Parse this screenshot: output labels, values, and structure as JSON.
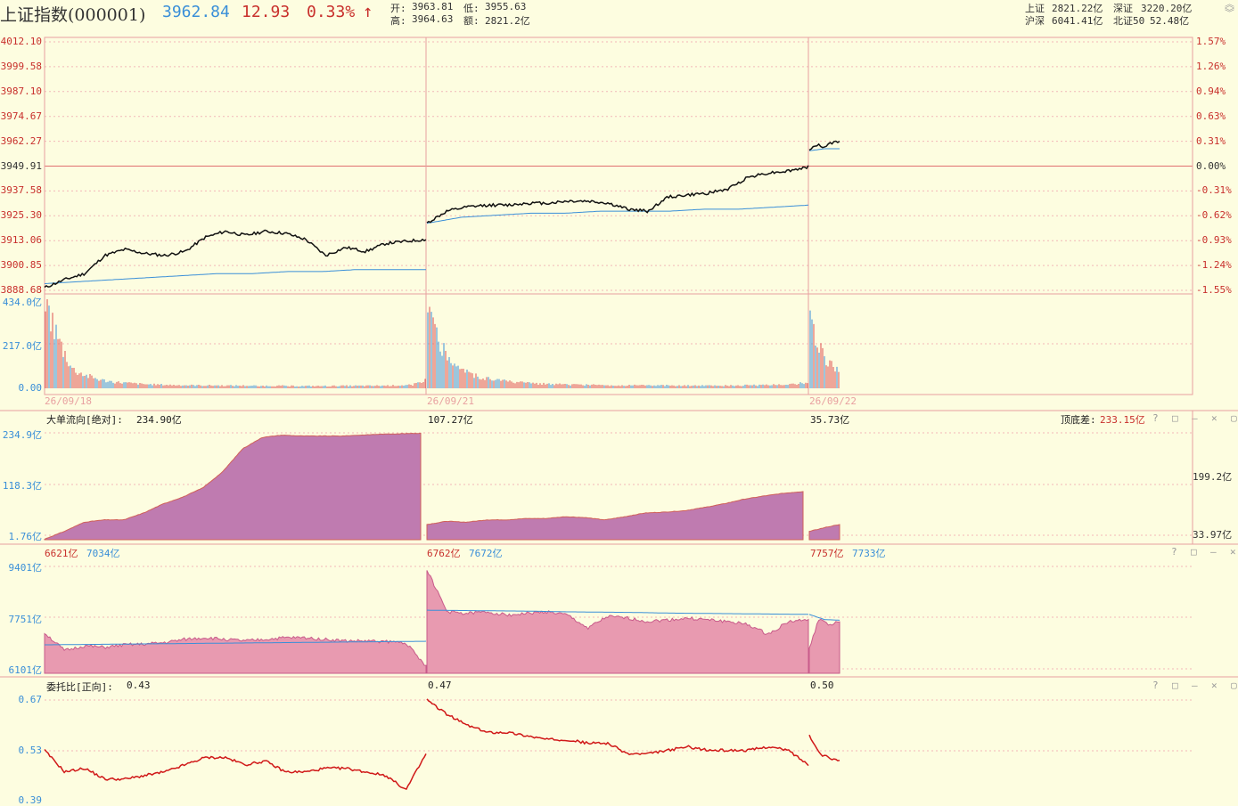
{
  "header": {
    "title": "上证指数(000001)",
    "price": "3962.84",
    "change": "12.93",
    "change_pct": "0.33%",
    "arrow": "↑",
    "open_label": "开:",
    "open": "3963.81",
    "low_label": "低:",
    "low": "3955.63",
    "high_label": "高:",
    "high": "3964.63",
    "amount_label": "额:",
    "amount": "2821.2亿",
    "sh_label": "上证",
    "sh": "2821.22亿",
    "sz_label": "深证",
    "sz": "3220.20亿",
    "hs_label": "沪深",
    "hs": "6041.41亿",
    "bz_label": "北证50",
    "bz": "52.48亿"
  },
  "colors": {
    "background": "#fdfde0",
    "up": "#c8302c",
    "blue": "#3a8fd8",
    "price_line": "#111111",
    "avg_line": "#3a8fd8",
    "grid": "#f2b8b8",
    "flow_fill": "#bf7bb0",
    "amount_fill": "#e89ab0",
    "ratio_line": "#d01818"
  },
  "price_panel": {
    "left_ticks": [
      "4012.10",
      "3999.58",
      "3987.10",
      "3974.67",
      "3962.27",
      "3949.91",
      "3937.58",
      "3925.30",
      "3913.06",
      "3900.85",
      "3888.68"
    ],
    "right_ticks": [
      "1.57%",
      "1.26%",
      "0.94%",
      "0.63%",
      "0.31%",
      "0.00%",
      "-0.31%",
      "-0.62%",
      "-0.93%",
      "-1.24%",
      "-1.55%"
    ],
    "dates": [
      "26/09/18",
      "26/09/21",
      "26/09/22"
    ]
  },
  "volume_panel": {
    "ticks": [
      "434.0亿",
      "217.0亿",
      "0.00"
    ]
  },
  "flow_panel": {
    "label": "大单流向[绝对]:",
    "values": [
      "234.90亿",
      "107.27亿",
      "35.73亿"
    ],
    "diff_label": "顶底差:",
    "diff_value": "233.15亿",
    "ticks": [
      "234.9亿",
      "118.3亿",
      "1.76亿"
    ],
    "right_ticks": [
      "199.2亿",
      "33.97亿"
    ]
  },
  "amount_panel": {
    "pairs": [
      [
        "6621亿",
        "7034亿"
      ],
      [
        "6762亿",
        "7672亿"
      ],
      [
        "7757亿",
        "7733亿"
      ]
    ],
    "ticks": [
      "9401亿",
      "7751亿",
      "6101亿"
    ]
  },
  "ratio_panel": {
    "label": "委托比[正向]:",
    "values": [
      "0.43",
      "0.47",
      "0.50"
    ],
    "ticks": [
      "0.67",
      "0.53",
      "0.39"
    ]
  },
  "controls": {
    "help": "?",
    "restore": "□",
    "minimize": "—",
    "close": "✕",
    "max": "▢"
  },
  "chart_data": [
    {
      "type": "line",
      "title": "",
      "series": [
        {
          "name": "",
          "segments": [
            {
              "date": "26/09/18",
              "values": [
                3890,
                3894,
                3897,
                3906,
                3909,
                3907,
                3906,
                3908,
                3915,
                3918,
                3916,
                3918,
                3917,
                3914,
                3906,
                3910,
                3908,
                3912,
                3913,
                3914
              ]
            },
            {
              "date": "26/09/21",
              "values": [
                3922,
                3928,
                3930,
                3931,
                3931,
                3932,
                3932,
                3933,
                3933,
                3932,
                3929,
                3928,
                3935,
                3936,
                3937,
                3939,
                3945,
                3947,
                3948,
                3950
              ]
            },
            {
              "date": "26/09/22",
              "values": [
                3958,
                3961,
                3960,
                3962,
                3963
              ]
            }
          ]
        },
        {
          "name": "",
          "segments": [
            {
              "date": "26/09/18",
              "values": [
                3892,
                3893,
                3894,
                3895,
                3896,
                3897,
                3897,
                3898,
                3898,
                3899,
                3899,
                3899
              ]
            },
            {
              "date": "26/09/21",
              "values": [
                3922,
                3925,
                3926,
                3927,
                3927,
                3928,
                3928,
                3928,
                3929,
                3929,
                3930,
                3931
              ]
            },
            {
              "date": "26/09/22",
              "values": [
                3958,
                3959,
                3959
              ]
            }
          ]
        }
      ],
      "ylim": [
        3888.68,
        4012.1
      ]
    },
    {
      "type": "area",
      "title": "",
      "series": [
        {
          "name": "",
          "segments": [
            {
              "date": "26/09/18",
              "values": [
                3,
                20,
                40,
                45,
                45,
                60,
                80,
                95,
                115,
                150,
                200,
                225,
                230,
                228,
                228,
                228,
                230,
                232,
                233,
                234
              ]
            },
            {
              "date": "26/09/21",
              "values": [
                35,
                42,
                40,
                45,
                45,
                48,
                48,
                52,
                50,
                45,
                52,
                60,
                62,
                65,
                72,
                80,
                90,
                97,
                103,
                107
              ]
            },
            {
              "date": "26/09/22",
              "values": [
                20,
                28,
                35
              ]
            }
          ]
        }
      ],
      "ylim": [
        1.76,
        234.9
      ]
    },
    {
      "type": "area",
      "title": "",
      "series": [
        {
          "name": "",
          "segments": [
            {
              "date": "26/09/18",
              "values": [
                7350,
                6800,
                6950,
                6900,
                6980,
                7000,
                7050,
                7150,
                7200,
                7150,
                7100,
                7150,
                7200,
                7200,
                7150,
                7100,
                7100,
                7080,
                7050,
                6300
              ]
            },
            {
              "date": "26/09/21",
              "values": [
                9301,
                8000,
                7950,
                8000,
                7900,
                7950,
                8000,
                7900,
                7500,
                7850,
                7800,
                7700,
                7750,
                7800,
                7750,
                7700,
                7600,
                7300,
                7700,
                7757
              ]
            },
            {
              "date": "26/09/22",
              "values": [
                6900,
                7800,
                7600,
                7733
              ]
            }
          ]
        },
        {
          "name": "",
          "segments": [
            {
              "date": "26/09/18",
              "values": [
                6980,
                6990,
                7000,
                7010,
                7020,
                7030,
                7040,
                7050,
                7060,
                7070,
                7080,
                7090
              ]
            },
            {
              "date": "26/09/21",
              "values": [
                8050,
                8040,
                8030,
                8020,
                8000,
                7990,
                7980,
                7960,
                7950,
                7940,
                7930,
                7920
              ]
            },
            {
              "date": "26/09/22",
              "values": [
                7920,
                7760,
                7740
              ]
            }
          ]
        }
      ],
      "ylim": [
        6101,
        9401
      ]
    },
    {
      "type": "line",
      "title": "",
      "series": [
        {
          "name": "",
          "segments": [
            {
              "date": "26/09/18",
              "values": [
                0.53,
                0.47,
                0.48,
                0.45,
                0.45,
                0.46,
                0.47,
                0.49,
                0.51,
                0.51,
                0.49,
                0.5,
                0.47,
                0.47,
                0.48,
                0.48,
                0.47,
                0.46,
                0.42,
                0.52
              ]
            },
            {
              "date": "26/09/21",
              "values": [
                0.67,
                0.63,
                0.6,
                0.58,
                0.58,
                0.57,
                0.56,
                0.56,
                0.55,
                0.55,
                0.52,
                0.52,
                0.53,
                0.54,
                0.53,
                0.53,
                0.53,
                0.54,
                0.53,
                0.49
              ]
            },
            {
              "date": "26/09/22",
              "values": [
                0.57,
                0.52,
                0.51,
                0.5
              ]
            }
          ]
        }
      ],
      "ylim": [
        0.39,
        0.67
      ]
    }
  ]
}
